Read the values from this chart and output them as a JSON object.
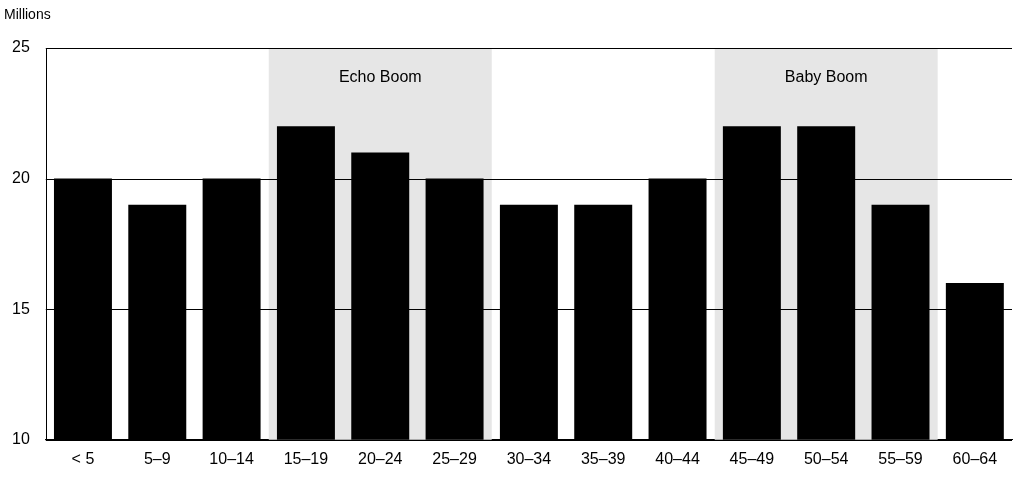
{
  "chart_data": {
    "type": "bar",
    "ylabel": "Millions",
    "categories": [
      "< 5",
      "5–9",
      "10–14",
      "15–19",
      "20–24",
      "25–29",
      "30–34",
      "35–39",
      "40–44",
      "45–49",
      "50–54",
      "55–59",
      "60–64"
    ],
    "values": [
      20,
      19,
      20,
      22,
      21,
      20,
      19,
      19,
      20,
      22,
      22,
      19,
      16
    ],
    "color": "#000000",
    "ylim": [
      10,
      25
    ],
    "yticks": [
      10,
      15,
      20,
      25
    ],
    "grid": "y",
    "bands": [
      {
        "axis": "x",
        "from": "15–19",
        "to": "25–29",
        "label": "Echo Boom",
        "color": "#e6e6e6"
      },
      {
        "axis": "x",
        "from": "45–49",
        "to": "55–59",
        "label": "Baby Boom",
        "color": "#e6e6e6"
      }
    ]
  }
}
